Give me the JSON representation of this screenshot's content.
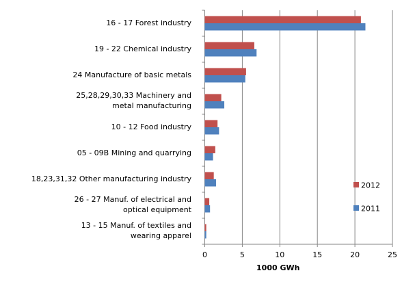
{
  "chart_data": {
    "type": "bar",
    "orientation": "horizontal",
    "categories": [
      "16 - 17 Forest industry",
      "19 - 22 Chemical industry",
      "24 Manufacture of basic metals",
      "25,28,29,30,33 Machinery and metal manufacturing",
      "10 - 12 Food industry",
      "05 - 09B Mining and quarrying",
      "18,23,31,32 Other manufacturing industry",
      "26 - 27 Manuf. of electrical and  optical equipment",
      "13 - 15 Manuf. of textiles and  wearing apparel"
    ],
    "series": [
      {
        "name": "2012",
        "color": "#c0504d",
        "values": [
          20.8,
          6.6,
          5.5,
          2.2,
          1.7,
          1.4,
          1.2,
          0.6,
          0.2
        ]
      },
      {
        "name": "2011",
        "color": "#4f81bd",
        "values": [
          21.4,
          6.9,
          5.4,
          2.6,
          1.9,
          1.1,
          1.5,
          0.7,
          0.2
        ]
      }
    ],
    "xlabel": "1000 GWh",
    "xlim": [
      0,
      25
    ],
    "xticks": [
      0,
      5,
      10,
      15,
      20,
      25
    ],
    "grid": "vertical",
    "legend_placement": "right"
  }
}
